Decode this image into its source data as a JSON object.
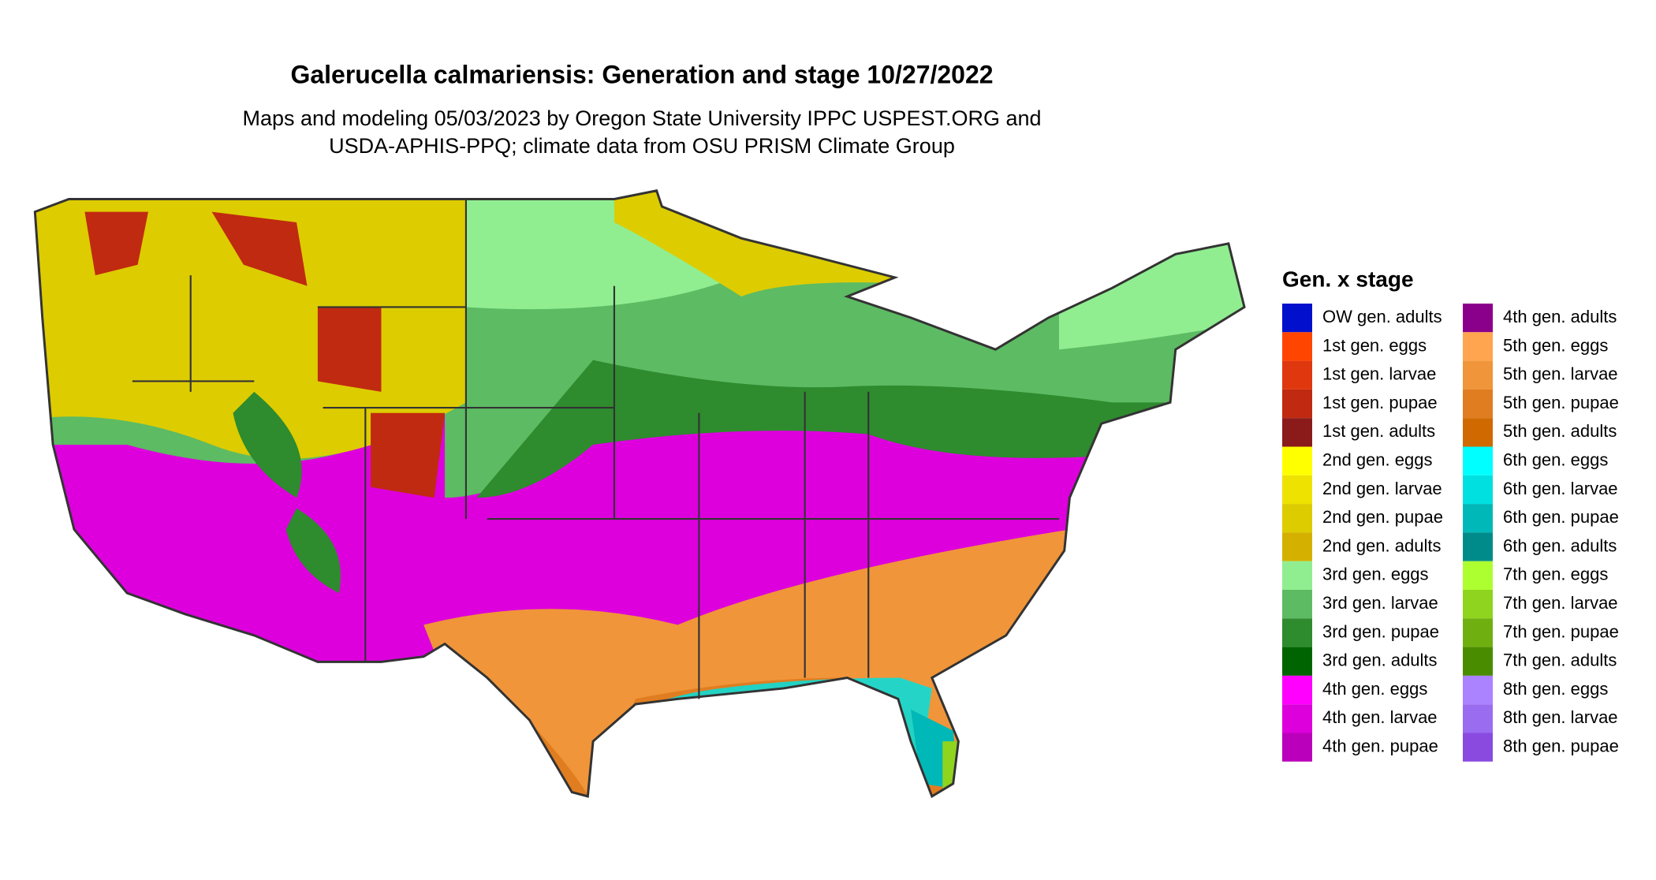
{
  "title": "Galerucella calmariensis: Generation and stage 10/27/2022",
  "subtitle": [
    "Maps and modeling 05/03/2023 by Oregon State University IPPC USPEST.ORG and",
    "USDA-APHIS-PPQ; climate data from OSU PRISM Climate Group"
  ],
  "legend": {
    "title": "Gen. x stage",
    "items": [
      {
        "label": "OW gen. adults",
        "color": "#0010cc"
      },
      {
        "label": "1st gen. eggs",
        "color": "#ff4500"
      },
      {
        "label": "1st gen. larvae",
        "color": "#e0380e"
      },
      {
        "label": "1st gen. pupae",
        "color": "#c02a10"
      },
      {
        "label": "1st gen. adults",
        "color": "#8b1a1a"
      },
      {
        "label": "2nd gen. eggs",
        "color": "#ffff00"
      },
      {
        "label": "2nd gen. larvae",
        "color": "#eee200"
      },
      {
        "label": "2nd gen. pupae",
        "color": "#ddcc00"
      },
      {
        "label": "2nd gen. adults",
        "color": "#d4b000"
      },
      {
        "label": "3rd gen. eggs",
        "color": "#90ee90"
      },
      {
        "label": "3rd gen. larvae",
        "color": "#5dbb63"
      },
      {
        "label": "3rd gen. pupae",
        "color": "#2e8b2e"
      },
      {
        "label": "3rd gen. adults",
        "color": "#006400"
      },
      {
        "label": "4th gen. eggs",
        "color": "#ff00ff"
      },
      {
        "label": "4th gen. larvae",
        "color": "#dd00dd"
      },
      {
        "label": "4th gen. pupae",
        "color": "#bb00bb"
      },
      {
        "label": "4th gen. adults",
        "color": "#8b008b"
      },
      {
        "label": "5th gen. eggs",
        "color": "#ffa54f"
      },
      {
        "label": "5th gen. larvae",
        "color": "#f0953a"
      },
      {
        "label": "5th gen. pupae",
        "color": "#e07d20"
      },
      {
        "label": "5th gen. adults",
        "color": "#d06a00"
      },
      {
        "label": "6th gen. eggs",
        "color": "#00ffff"
      },
      {
        "label": "6th gen. larvae",
        "color": "#00e0e0"
      },
      {
        "label": "6th gen. pupae",
        "color": "#00b8b8"
      },
      {
        "label": "6th gen. adults",
        "color": "#008b8b"
      },
      {
        "label": "7th gen. eggs",
        "color": "#adff2f"
      },
      {
        "label": "7th gen. larvae",
        "color": "#8fd41e"
      },
      {
        "label": "7th gen. pupae",
        "color": "#6fb010"
      },
      {
        "label": "7th gen. adults",
        "color": "#4a8c00"
      },
      {
        "label": "8th gen. eggs",
        "color": "#ab82ff"
      },
      {
        "label": "8th gen. larvae",
        "color": "#9a6cf0"
      },
      {
        "label": "8th gen. pupae",
        "color": "#8a4ae0"
      }
    ]
  }
}
